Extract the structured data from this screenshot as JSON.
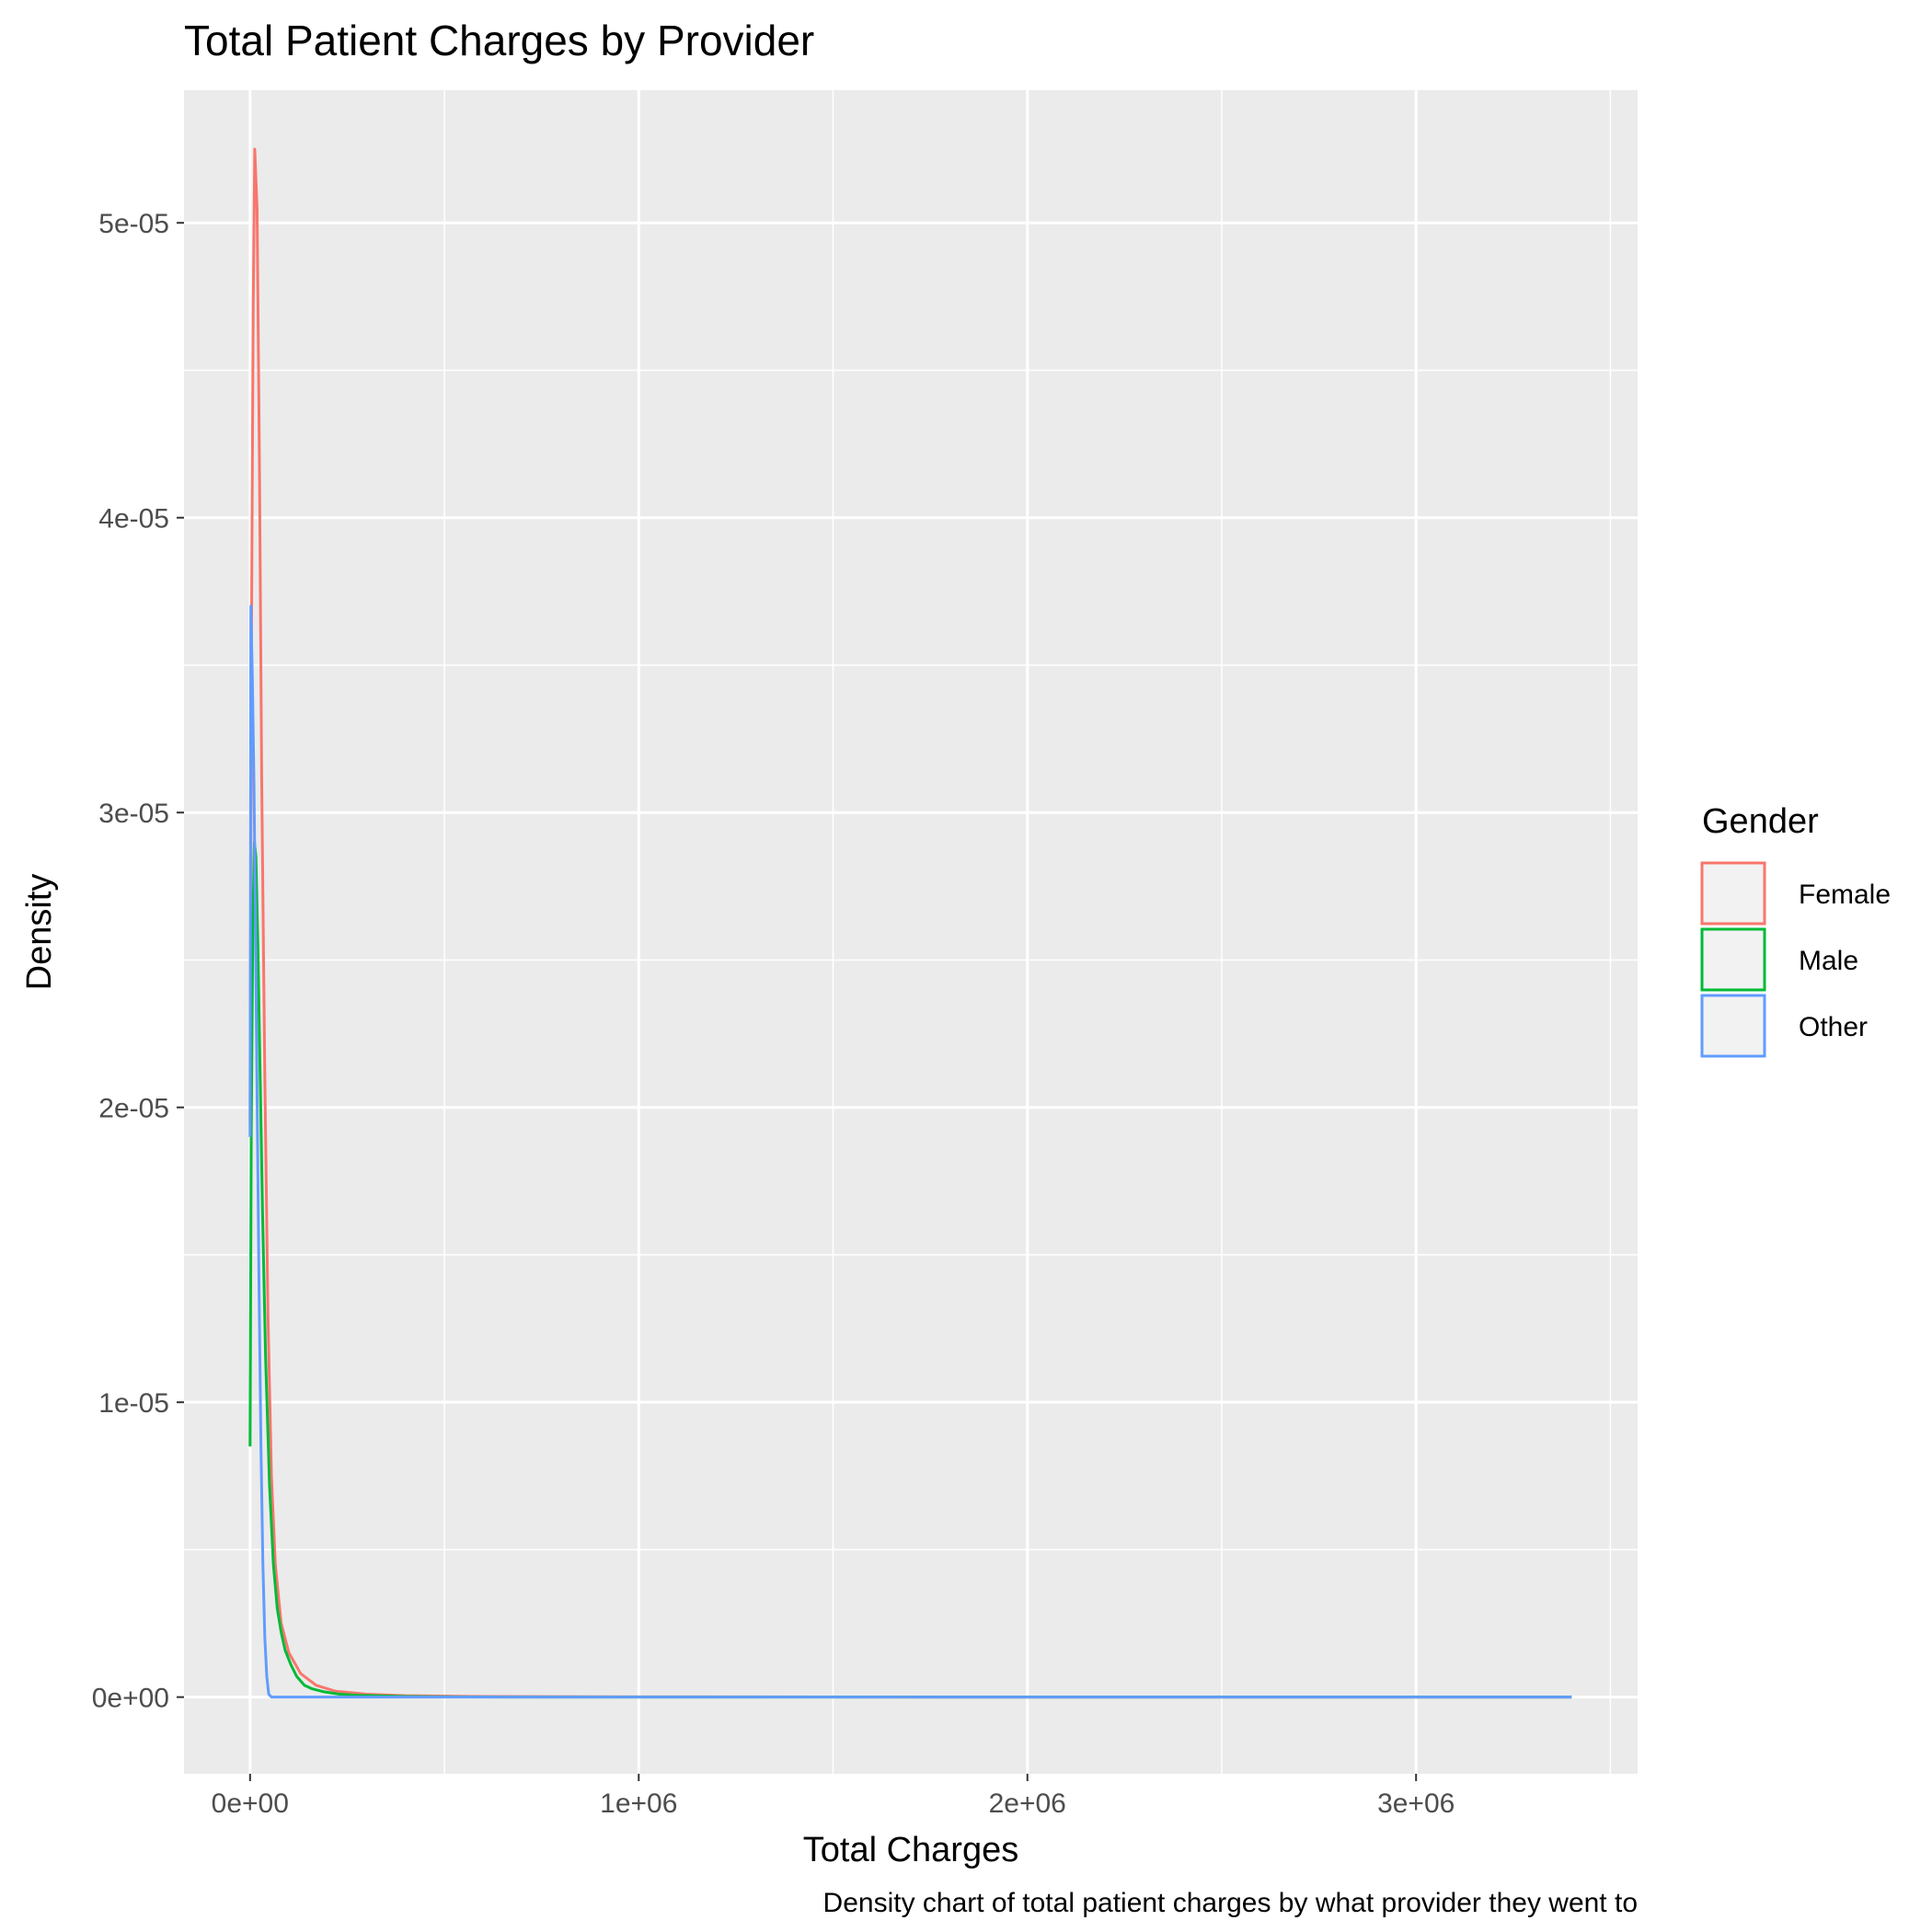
{
  "chart_data": {
    "type": "line",
    "title": "Total Patient Charges by Provider",
    "xlabel": "Total Charges",
    "ylabel": "Density",
    "caption": "Density chart of total patient charges by what provider they went to",
    "xlim": [
      -170000,
      3570000
    ],
    "ylim": [
      -2.6e-06,
      5.45e-05
    ],
    "x_ticks": [
      {
        "value": 0,
        "label": "0e+00"
      },
      {
        "value": 1000000,
        "label": "1e+06"
      },
      {
        "value": 2000000,
        "label": "2e+06"
      },
      {
        "value": 3000000,
        "label": "3e+06"
      }
    ],
    "y_ticks": [
      {
        "value": 0,
        "label": "0e+00"
      },
      {
        "value": 1e-05,
        "label": "1e-05"
      },
      {
        "value": 2e-05,
        "label": "2e-05"
      },
      {
        "value": 3e-05,
        "label": "3e-05"
      },
      {
        "value": 4e-05,
        "label": "4e-05"
      },
      {
        "value": 5e-05,
        "label": "5e-05"
      }
    ],
    "grid": true,
    "legend": {
      "title": "Gender",
      "position": "right"
    },
    "series": [
      {
        "name": "Female",
        "color": "#F8766D",
        "points": [
          [
            0,
            1.95e-05
          ],
          [
            4000,
            3.7e-05
          ],
          [
            8000,
            4.7e-05
          ],
          [
            12000,
            5.25e-05
          ],
          [
            18000,
            5.05e-05
          ],
          [
            24000,
            4.2e-05
          ],
          [
            30000,
            3.1e-05
          ],
          [
            38000,
            2.1e-05
          ],
          [
            46000,
            1.3e-05
          ],
          [
            55000,
            7.5e-06
          ],
          [
            65000,
            4.5e-06
          ],
          [
            80000,
            2.5e-06
          ],
          [
            100000,
            1.5e-06
          ],
          [
            130000,
            8e-07
          ],
          [
            170000,
            4e-07
          ],
          [
            220000,
            2e-07
          ],
          [
            300000,
            1e-07
          ],
          [
            400000,
            5e-08
          ],
          [
            600000,
            2e-08
          ],
          [
            1000000,
            1e-08
          ],
          [
            2000000,
            0
          ],
          [
            3000000,
            0
          ],
          [
            3400000,
            0
          ]
        ]
      },
      {
        "name": "Male",
        "color": "#00BA38",
        "points": [
          [
            0,
            8.5e-06
          ],
          [
            3000,
            1.9e-05
          ],
          [
            7000,
            2.6e-05
          ],
          [
            11000,
            2.9e-05
          ],
          [
            15000,
            2.85e-05
          ],
          [
            20000,
            2.55e-05
          ],
          [
            26000,
            2.1e-05
          ],
          [
            32000,
            1.65e-05
          ],
          [
            40000,
            1.15e-05
          ],
          [
            50000,
            7.2e-06
          ],
          [
            60000,
            4.5e-06
          ],
          [
            70000,
            3e-06
          ],
          [
            80000,
            2.2e-06
          ],
          [
            90000,
            1.6e-06
          ],
          [
            105000,
            1.1e-06
          ],
          [
            120000,
            7e-07
          ],
          [
            140000,
            4e-07
          ],
          [
            160000,
            2.8e-07
          ],
          [
            190000,
            1.8e-07
          ],
          [
            230000,
            1e-07
          ],
          [
            280000,
            6e-08
          ],
          [
            340000,
            4e-08
          ],
          [
            400000,
            2e-08
          ],
          [
            500000,
            1e-08
          ],
          [
            700000,
            0
          ],
          [
            1500000,
            0
          ],
          [
            3400000,
            0
          ]
        ]
      },
      {
        "name": "Other",
        "color": "#619CFF",
        "points": [
          [
            0,
            1.9e-05
          ],
          [
            2000,
            3.7e-05
          ],
          [
            6000,
            3.45e-05
          ],
          [
            10000,
            3.1e-05
          ],
          [
            14000,
            2.6e-05
          ],
          [
            18000,
            2.05e-05
          ],
          [
            23000,
            1.4e-05
          ],
          [
            28000,
            8.5e-06
          ],
          [
            33000,
            4.5e-06
          ],
          [
            38000,
            2e-06
          ],
          [
            43000,
            7e-07
          ],
          [
            48000,
            1e-07
          ],
          [
            55000,
            0
          ],
          [
            100000,
            0
          ],
          [
            1000000,
            0
          ],
          [
            2000000,
            0
          ],
          [
            3000000,
            0
          ],
          [
            3400000,
            0
          ]
        ]
      }
    ]
  }
}
